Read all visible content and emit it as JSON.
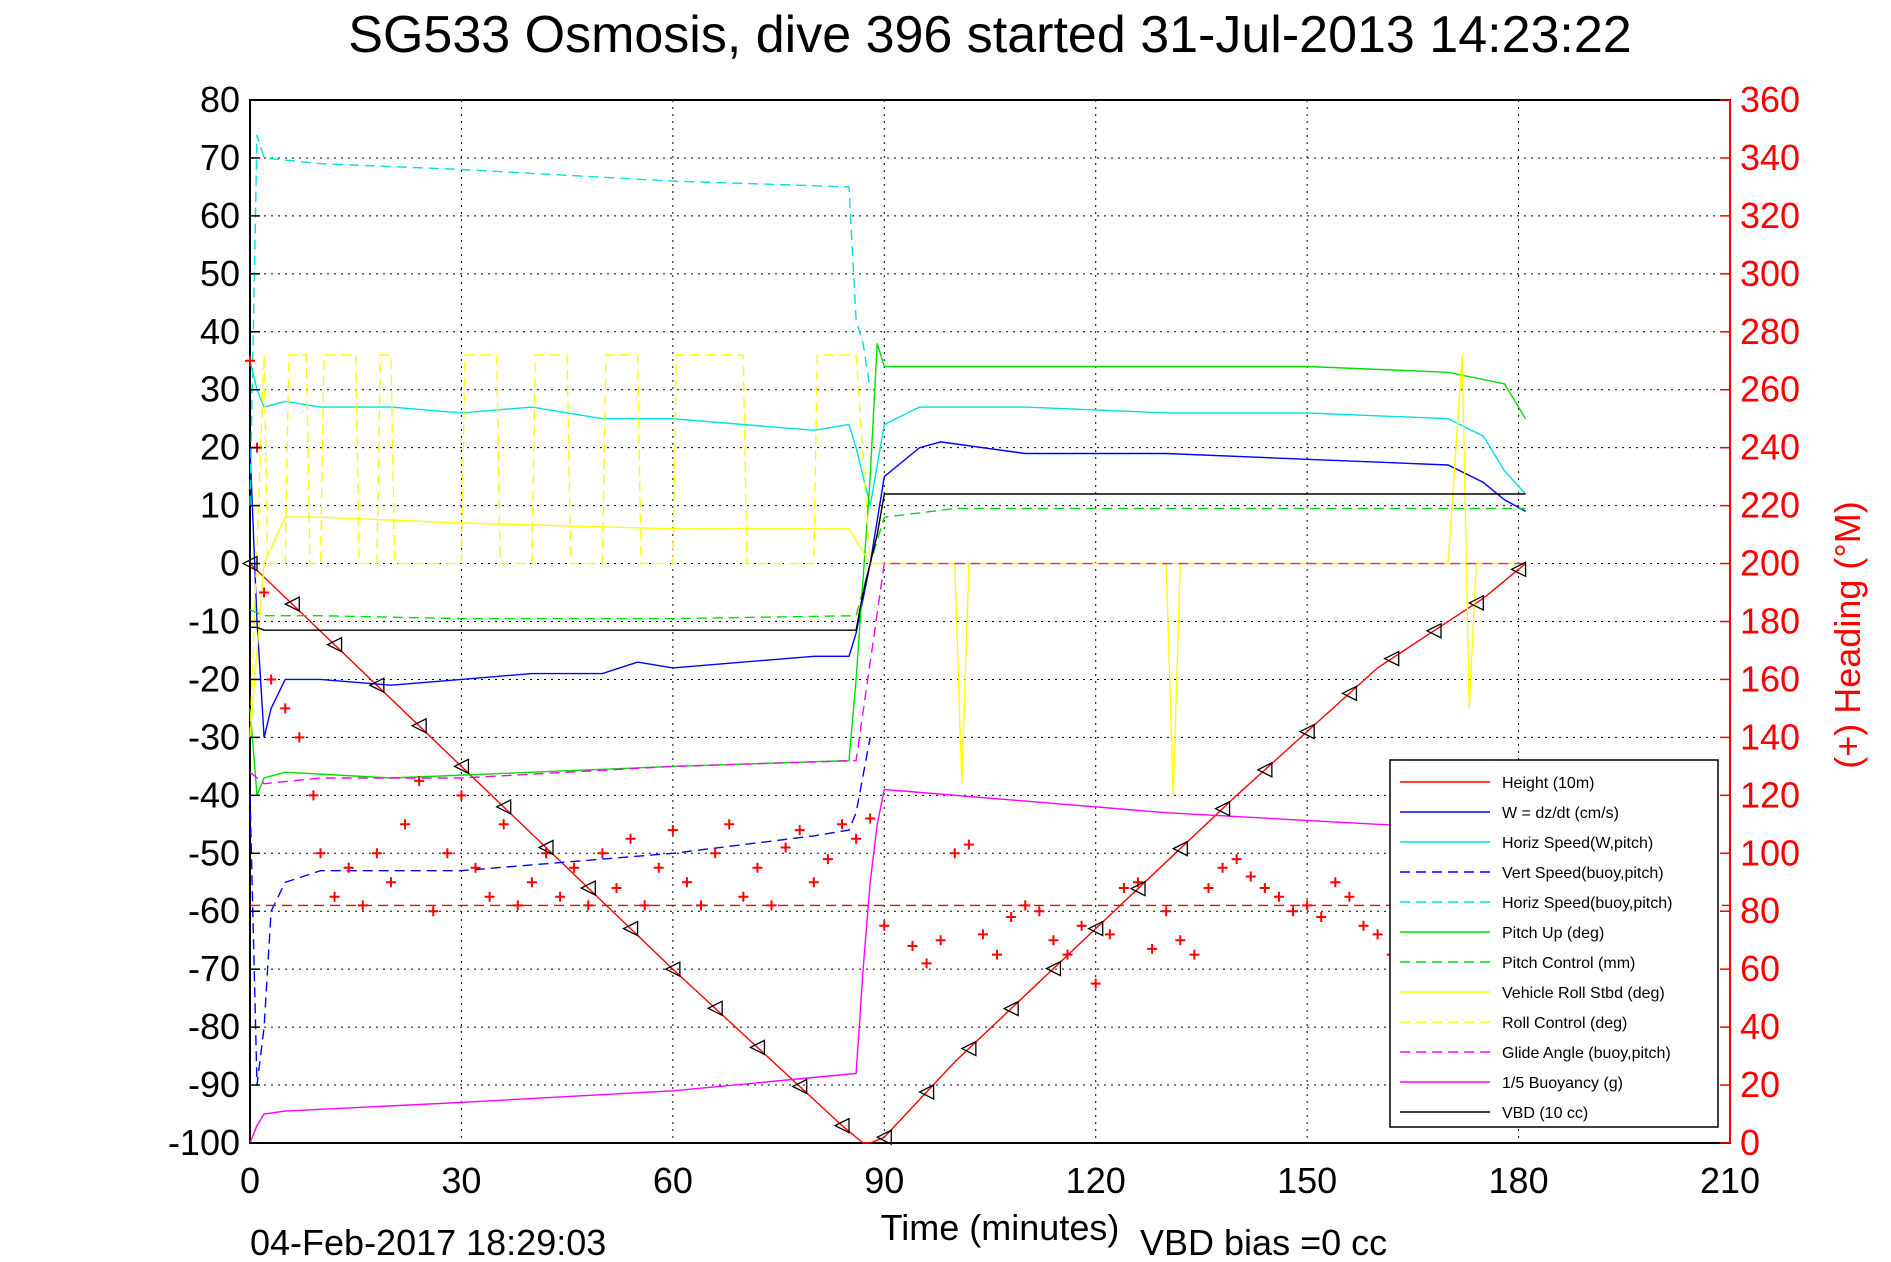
{
  "title": "SG533 Osmosis, dive 396 started 31-Jul-2013 14:23:22",
  "footer": {
    "timestamp": "04-Feb-2017 18:29:03",
    "bias": "VBD bias =0 cc"
  },
  "colors": {
    "right_axis": "#ff0000"
  },
  "chart_data": {
    "type": "line",
    "xlabel": "Time (minutes)",
    "ylabel": "",
    "y2label": "(+) Heading (°M)",
    "xlim": [
      0,
      210
    ],
    "ylim": [
      -100,
      80
    ],
    "y2lim": [
      0,
      360
    ],
    "xticks": [
      0,
      30,
      60,
      90,
      120,
      150,
      180,
      210
    ],
    "yticks": [
      80,
      70,
      60,
      50,
      40,
      30,
      20,
      10,
      0,
      -10,
      -20,
      -30,
      -40,
      -50,
      -60,
      -70,
      -80,
      -90,
      -100
    ],
    "y2ticks": [
      360,
      340,
      320,
      300,
      280,
      260,
      240,
      220,
      200,
      180,
      160,
      140,
      120,
      100,
      80,
      60,
      40,
      20,
      0
    ],
    "grid": true,
    "legend_position": "bottom-right",
    "series": [
      {
        "name": "Height (10m)",
        "color": "#ff0000",
        "dash": "solid",
        "x": [
          0,
          30,
          60,
          84,
          87,
          88,
          90,
          100,
          120,
          140,
          160,
          175,
          181
        ],
        "y": [
          0,
          -35,
          -70,
          -97,
          -100,
          -100,
          -99,
          -86,
          -63,
          -40,
          -18,
          -6,
          0
        ]
      },
      {
        "name": "W = dz/dt (cm/s)",
        "color": "#0000ff",
        "dash": "solid",
        "x": [
          0,
          1,
          2,
          3,
          5,
          10,
          20,
          30,
          40,
          50,
          55,
          60,
          70,
          80,
          85,
          86,
          88,
          90,
          95,
          98,
          110,
          130,
          150,
          170,
          175,
          178,
          181
        ],
        "y": [
          20,
          -10,
          -30,
          -25,
          -20,
          -20,
          -21,
          -20,
          -19,
          -19,
          -17,
          -18,
          -17,
          -16,
          -16,
          -12,
          0,
          15,
          20,
          21,
          19,
          19,
          18,
          17,
          14,
          11,
          9
        ]
      },
      {
        "name": "Horiz Speed(W,pitch)",
        "color": "#00e0e0",
        "dash": "solid",
        "x": [
          0,
          1,
          2,
          5,
          10,
          20,
          30,
          40,
          50,
          60,
          70,
          80,
          85,
          86,
          88,
          90,
          95,
          110,
          130,
          150,
          170,
          175,
          178,
          181
        ],
        "y": [
          35,
          30,
          27,
          28,
          27,
          27,
          26,
          27,
          25,
          25,
          24,
          23,
          24,
          20,
          10,
          24,
          27,
          27,
          26,
          26,
          25,
          22,
          16,
          12
        ]
      },
      {
        "name": "Vert Speed(buoy,pitch)",
        "color": "#0000ff",
        "dash": "dash",
        "x": [
          0,
          1,
          2,
          3,
          5,
          10,
          30,
          60,
          80,
          85,
          86,
          88
        ],
        "y": [
          -40,
          -90,
          -80,
          -60,
          -55,
          -53,
          -53,
          -50,
          -47,
          -46,
          -43,
          -30
        ]
      },
      {
        "name": "Horiz Speed(buoy,pitch)",
        "color": "#00e0e0",
        "dash": "dash",
        "x": [
          0,
          1,
          2,
          10,
          30,
          60,
          85,
          86,
          87,
          88
        ],
        "y": [
          10,
          74,
          70,
          69,
          68,
          66,
          65,
          42,
          38,
          30
        ]
      },
      {
        "name": "Pitch Up (deg)",
        "color": "#00e000",
        "dash": "solid",
        "x": [
          0,
          1,
          2,
          5,
          20,
          40,
          60,
          85,
          86,
          88,
          89,
          90,
          110,
          130,
          150,
          170,
          178,
          181
        ],
        "y": [
          -25,
          -40,
          -37,
          -36,
          -37,
          -36,
          -35,
          -34,
          -20,
          15,
          38,
          34,
          34,
          34,
          34,
          33,
          31,
          25
        ]
      },
      {
        "name": "Pitch Control (mm)",
        "color": "#00e000",
        "dash": "dash",
        "x": [
          0,
          2,
          10,
          30,
          60,
          86,
          88,
          90,
          100,
          130,
          160,
          181
        ],
        "y": [
          -8,
          -9,
          -9,
          -9.5,
          -9.5,
          -9,
          0,
          8,
          9.5,
          9.5,
          9.5,
          9.5
        ]
      },
      {
        "name": "Vehicle Roll Stbd (deg)",
        "color": "#ffff00",
        "dash": "solid",
        "x": [
          0,
          2,
          5,
          10,
          30,
          60,
          85,
          88,
          90,
          100,
          101,
          102,
          130,
          131,
          132,
          170,
          172,
          173,
          174,
          181
        ],
        "y": [
          -30,
          0,
          8,
          8,
          7,
          6,
          6,
          0,
          0,
          0,
          -38,
          0,
          0,
          -40,
          0,
          0,
          36,
          -25,
          0,
          0
        ]
      },
      {
        "name": "Roll Control (deg)",
        "color": "#ffff00",
        "dash": "dash",
        "x": [
          0,
          2,
          2.5,
          5,
          5.5,
          8,
          8.5,
          10,
          10.5,
          15,
          15.5,
          18,
          18.5,
          20,
          20.5,
          30,
          30.5,
          35,
          35.5,
          40,
          40.5,
          45,
          45.5,
          50,
          50.5,
          55,
          55.5,
          60,
          60.5,
          70,
          70.5,
          80,
          80.5,
          86,
          88,
          181
        ],
        "y": [
          -30,
          36,
          0,
          0,
          36,
          36,
          0,
          0,
          36,
          36,
          0,
          0,
          36,
          36,
          0,
          0,
          36,
          36,
          0,
          0,
          36,
          36,
          0,
          0,
          36,
          36,
          0,
          0,
          36,
          36,
          0,
          0,
          36,
          36,
          0,
          0
        ]
      },
      {
        "name": "Glide Angle (buoy,pitch)",
        "color": "#ff00ff",
        "dash": "dash",
        "x": [
          0,
          2,
          10,
          30,
          60,
          86,
          88,
          90,
          181
        ],
        "y": [
          -36,
          -38,
          -37,
          -37,
          -35,
          -34,
          -17,
          0,
          0
        ]
      },
      {
        "name": "1/5 Buoyancy (g)",
        "color": "#ff00ff",
        "dash": "solid",
        "x": [
          0,
          1,
          2,
          5,
          30,
          60,
          86,
          87,
          88,
          89,
          90,
          110,
          130,
          160,
          181
        ],
        "y": [
          -100,
          -97,
          -95,
          -94.5,
          -93,
          -91,
          -88,
          -70,
          -55,
          -45,
          -39,
          -41,
          -43,
          -45,
          -46
        ]
      },
      {
        "name": "VBD (10 cc)",
        "color": "#000000",
        "dash": "solid",
        "x": [
          0,
          1,
          2,
          10,
          30,
          60,
          86,
          87,
          88,
          89,
          90,
          181
        ],
        "y": [
          -11,
          -11,
          -11.5,
          -11.5,
          -11.5,
          -11.5,
          -11.5,
          -5,
          0,
          5,
          12,
          12
        ]
      }
    ],
    "heading": {
      "name": "Heading",
      "axis": "right",
      "marker": "+",
      "color": "#ff0000",
      "reference_line": 82,
      "x": [
        0,
        1,
        2,
        3,
        5,
        7,
        9,
        10,
        12,
        14,
        16,
        18,
        20,
        22,
        24,
        26,
        28,
        30,
        32,
        34,
        36,
        38,
        40,
        42,
        44,
        46,
        48,
        50,
        52,
        54,
        56,
        58,
        60,
        62,
        64,
        66,
        68,
        70,
        72,
        74,
        76,
        78,
        80,
        82,
        84,
        86,
        88,
        90,
        94,
        96,
        98,
        100,
        102,
        104,
        106,
        108,
        110,
        112,
        114,
        116,
        118,
        120,
        122,
        124,
        126,
        128,
        130,
        132,
        134,
        136,
        138,
        140,
        142,
        144,
        146,
        148,
        150,
        152,
        154,
        156,
        158,
        160,
        162
      ],
      "y": [
        270,
        240,
        190,
        160,
        150,
        140,
        120,
        100,
        85,
        95,
        82,
        100,
        90,
        110,
        125,
        80,
        100,
        120,
        95,
        85,
        110,
        82,
        90,
        100,
        85,
        95,
        82,
        100,
        88,
        105,
        82,
        95,
        108,
        90,
        82,
        100,
        110,
        85,
        95,
        82,
        102,
        108,
        90,
        98,
        110,
        105,
        112,
        75,
        68,
        62,
        70,
        100,
        103,
        72,
        65,
        78,
        82,
        80,
        70,
        65,
        75,
        55,
        72,
        88,
        90,
        67,
        80,
        70,
        65,
        88,
        95,
        98,
        92,
        88,
        85,
        80,
        82,
        78,
        90,
        85,
        75,
        72,
        65
      ]
    }
  }
}
